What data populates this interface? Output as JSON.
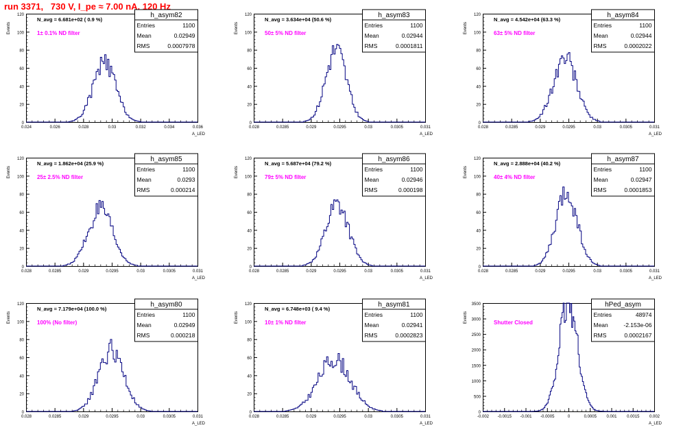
{
  "header": {
    "title": "run 3371,   730 V, I_pe ≈ 7.00 nA, 120 Hz"
  },
  "style": {
    "title_color": "#ff0000",
    "filter_color": "#ff00ff",
    "hist_color": "#000080",
    "axis_color": "#000000"
  },
  "stat_labels": {
    "entries": "Entries",
    "mean": "Mean",
    "rms": "RMS"
  },
  "y_axis_label": "Events",
  "x_axis_label": "A_LED",
  "chart_data": [
    {
      "type": "histogram",
      "name": "h_asym82",
      "navg_text": "N_avg = 6.681e+02 ( 0.9 %)",
      "filter_text": "1± 0.1% ND filter",
      "stats": {
        "entries": "1100",
        "mean": "0.02949",
        "rms": "0.0007978"
      },
      "xlim": [
        0.024,
        0.036
      ],
      "ylim": [
        0,
        120
      ],
      "xticks": [
        0.024,
        0.026,
        0.028,
        0.03,
        0.032,
        0.034,
        0.036
      ],
      "xtick_labels": [
        "0.024",
        "0.026",
        "0.028",
        "0.03",
        "0.032",
        "0.034",
        "0.036"
      ],
      "yticks": [
        0,
        20,
        40,
        60,
        80,
        100,
        120
      ],
      "dist": {
        "mean": 0.02949,
        "rms": 0.0007978,
        "peak": 65,
        "bins": 120,
        "seed": 82
      }
    },
    {
      "type": "histogram",
      "name": "h_asym83",
      "navg_text": "N_avg = 3.634e+04 (50.6 %)",
      "filter_text": "50± 5% ND filter",
      "stats": {
        "entries": "1100",
        "mean": "0.02944",
        "rms": "0.0001811"
      },
      "xlim": [
        0.028,
        0.031
      ],
      "ylim": [
        0,
        120
      ],
      "xticks": [
        0.028,
        0.0285,
        0.029,
        0.0295,
        0.03,
        0.0305,
        0.031
      ],
      "xtick_labels": [
        "0.028",
        "0.0285",
        "0.029",
        "0.0295",
        "0.03",
        "0.0305",
        "0.031"
      ],
      "yticks": [
        0,
        20,
        40,
        60,
        80,
        100,
        120
      ],
      "dist": {
        "mean": 0.02944,
        "rms": 0.0001811,
        "peak": 80,
        "bins": 120,
        "seed": 83
      }
    },
    {
      "type": "histogram",
      "name": "h_asym84",
      "navg_text": "N_avg = 4.542e+04 (63.3 %)",
      "filter_text": "63± 5% ND filter",
      "stats": {
        "entries": "1100",
        "mean": "0.02944",
        "rms": "0.0002022"
      },
      "xlim": [
        0.028,
        0.031
      ],
      "ylim": [
        0,
        120
      ],
      "xticks": [
        0.028,
        0.0285,
        0.029,
        0.0295,
        0.03,
        0.0305,
        0.031
      ],
      "xtick_labels": [
        "0.028",
        "0.0285",
        "0.029",
        "0.0295",
        "0.03",
        "0.0305",
        "0.031"
      ],
      "yticks": [
        0,
        20,
        40,
        60,
        80,
        100,
        120
      ],
      "dist": {
        "mean": 0.02944,
        "rms": 0.0002022,
        "peak": 72,
        "bins": 120,
        "seed": 84
      }
    },
    {
      "type": "histogram",
      "name": "h_asym85",
      "navg_text": "N_avg = 1.862e+04 (25.9 %)",
      "filter_text": "25± 2.5% ND filter",
      "stats": {
        "entries": "1100",
        "mean": "0.0293",
        "rms": "0.000214"
      },
      "xlim": [
        0.028,
        0.031
      ],
      "ylim": [
        0,
        120
      ],
      "xticks": [
        0.028,
        0.0285,
        0.029,
        0.0295,
        0.03,
        0.0305,
        0.031
      ],
      "xtick_labels": [
        "0.028",
        "0.0285",
        "0.029",
        "0.0295",
        "0.03",
        "0.0305",
        "0.031"
      ],
      "yticks": [
        0,
        20,
        40,
        60,
        80,
        100,
        120
      ],
      "dist": {
        "mean": 0.0293,
        "rms": 0.000214,
        "peak": 62,
        "bins": 120,
        "seed": 85
      }
    },
    {
      "type": "histogram",
      "name": "h_asym86",
      "navg_text": "N_avg = 5.687e+04 (79.2 %)",
      "filter_text": "79± 5% ND filter",
      "stats": {
        "entries": "1100",
        "mean": "0.02946",
        "rms": "0.000198"
      },
      "xlim": [
        0.028,
        0.031
      ],
      "ylim": [
        0,
        120
      ],
      "xticks": [
        0.028,
        0.0285,
        0.029,
        0.0295,
        0.03,
        0.0305,
        0.031
      ],
      "xtick_labels": [
        "0.028",
        "0.0285",
        "0.029",
        "0.0295",
        "0.03",
        "0.0305",
        "0.031"
      ],
      "yticks": [
        0,
        20,
        40,
        60,
        80,
        100,
        120
      ],
      "dist": {
        "mean": 0.02946,
        "rms": 0.000198,
        "peak": 70,
        "bins": 120,
        "seed": 86
      }
    },
    {
      "type": "histogram",
      "name": "h_asym87",
      "navg_text": "N_avg = 2.888e+04 (40.2 %)",
      "filter_text": "40± 4% ND filter",
      "stats": {
        "entries": "1100",
        "mean": "0.02947",
        "rms": "0.0001853"
      },
      "xlim": [
        0.028,
        0.031
      ],
      "ylim": [
        0,
        120
      ],
      "xticks": [
        0.028,
        0.0285,
        0.029,
        0.0295,
        0.03,
        0.0305,
        0.031
      ],
      "xtick_labels": [
        "0.028",
        "0.0285",
        "0.029",
        "0.0295",
        "0.03",
        "0.0305",
        "0.031"
      ],
      "yticks": [
        0,
        20,
        40,
        60,
        80,
        100,
        120
      ],
      "dist": {
        "mean": 0.02947,
        "rms": 0.0001853,
        "peak": 82,
        "bins": 120,
        "seed": 87
      }
    },
    {
      "type": "histogram",
      "name": "h_asym80",
      "navg_text": "N_avg = 7.179e+04 (100.0 %)",
      "filter_text": "100% (No filter)",
      "stats": {
        "entries": "1100",
        "mean": "0.02949",
        "rms": "0.000218"
      },
      "xlim": [
        0.028,
        0.031
      ],
      "ylim": [
        0,
        120
      ],
      "xticks": [
        0.028,
        0.0285,
        0.029,
        0.0295,
        0.03,
        0.0305,
        0.031
      ],
      "xtick_labels": [
        "0.028",
        "0.0285",
        "0.029",
        "0.0295",
        "0.03",
        "0.0305",
        "0.031"
      ],
      "yticks": [
        0,
        20,
        40,
        60,
        80,
        100,
        120
      ],
      "dist": {
        "mean": 0.02949,
        "rms": 0.000218,
        "peak": 68,
        "bins": 120,
        "seed": 80
      }
    },
    {
      "type": "histogram",
      "name": "h_asym81",
      "navg_text": "N_avg = 6.748e+03 ( 9.4 %)",
      "filter_text": "10± 1% ND filter",
      "stats": {
        "entries": "1100",
        "mean": "0.02941",
        "rms": "0.0002823"
      },
      "xlim": [
        0.028,
        0.031
      ],
      "ylim": [
        0,
        120
      ],
      "xticks": [
        0.028,
        0.0285,
        0.029,
        0.0295,
        0.03,
        0.0305,
        0.031
      ],
      "xtick_labels": [
        "0.028",
        "0.0285",
        "0.029",
        "0.0295",
        "0.03",
        "0.0305",
        "0.031"
      ],
      "yticks": [
        0,
        20,
        40,
        60,
        80,
        100,
        120
      ],
      "dist": {
        "mean": 0.02941,
        "rms": 0.0002823,
        "peak": 58,
        "bins": 120,
        "seed": 81
      }
    },
    {
      "type": "histogram",
      "name": "hPed_asym",
      "navg_text": "",
      "filter_text": "Shutter Closed",
      "stats": {
        "entries": "48974",
        "mean": "-2.153e-06",
        "rms": "0.0002167"
      },
      "xlim": [
        -0.002,
        0.002
      ],
      "ylim": [
        0,
        3500
      ],
      "xticks": [
        -0.002,
        -0.0015,
        -0.001,
        -0.0005,
        0,
        0.0005,
        0.001,
        0.0015,
        0.002
      ],
      "xtick_labels": [
        "-0.002",
        "-0.0015",
        "-0.001",
        "-0.0005",
        "0",
        "0.0005",
        "0.001",
        "0.0015",
        "0.002"
      ],
      "yticks": [
        0,
        500,
        1000,
        1500,
        2000,
        2500,
        3000,
        3500
      ],
      "dist": {
        "mean": -2.153e-06,
        "rms": 0.0002167,
        "peak": 3480,
        "bins": 160,
        "seed": 99
      }
    }
  ]
}
